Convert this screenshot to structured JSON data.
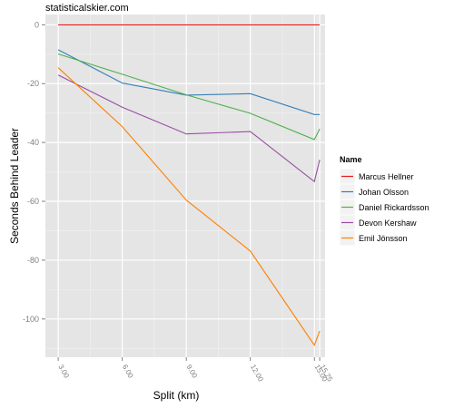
{
  "watermark": "statisticalskier.com",
  "chart_data": {
    "type": "line",
    "xlabel": "Split (km)",
    "ylabel": "Seconds Behind Leader",
    "x": [
      3.0,
      6.0,
      9.0,
      12.0,
      15.0,
      15.25
    ],
    "x_tick_labels": [
      "3.00",
      "6.00",
      "9.00",
      "12.00",
      "15.00",
      "15.25"
    ],
    "y_ticks": [
      0,
      -20,
      -40,
      -60,
      -80,
      -100
    ],
    "xlim": [
      2.4,
      15.5
    ],
    "ylim": [
      -113,
      3.5
    ],
    "legend": {
      "title": "Name",
      "placement": "right"
    },
    "panel_background": "#e5e5e5",
    "grid": true,
    "series": [
      {
        "name": "Marcus Hellner",
        "color": "#e41a1c",
        "values": [
          0,
          0,
          0,
          0,
          0,
          0
        ]
      },
      {
        "name": "Johan Olsson",
        "color": "#377eb8",
        "values": [
          -8.5,
          -19.8,
          -23.9,
          -23.4,
          -30.5,
          -30.5
        ]
      },
      {
        "name": "Daniel Rickardsson",
        "color": "#4daf4a",
        "values": [
          -9.9,
          -16.8,
          -23.8,
          -30.1,
          -39,
          -35.4
        ]
      },
      {
        "name": "Devon Kershaw",
        "color": "#984ea3",
        "values": [
          -17.1,
          -28,
          -37.1,
          -36.3,
          -53.3,
          -45.9
        ]
      },
      {
        "name": "Emil Jönsson",
        "color": "#ff7f00",
        "values": [
          -14.6,
          -34.6,
          -59.6,
          -76.9,
          -108.9,
          -104.1
        ]
      }
    ]
  }
}
